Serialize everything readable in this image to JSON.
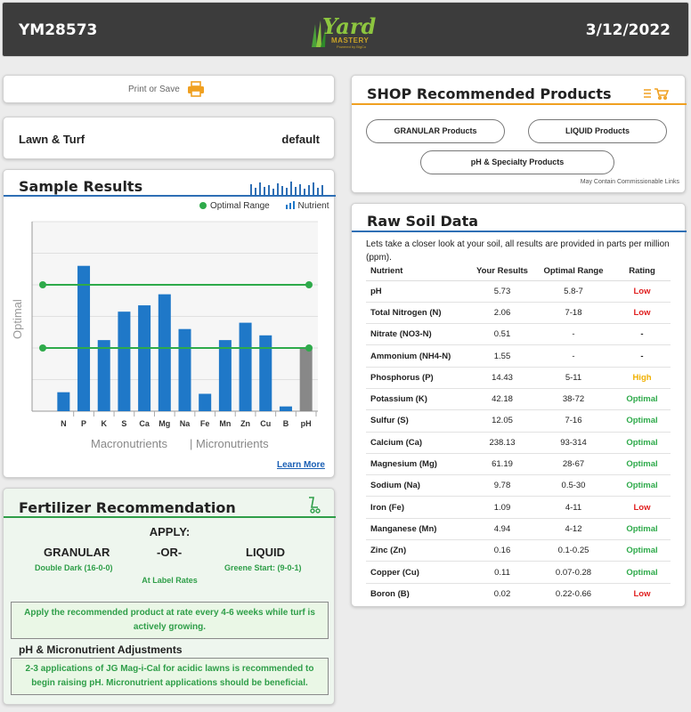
{
  "header": {
    "account_id": "YM28573",
    "date": "3/12/2022",
    "logo": {
      "word": "Yard",
      "sub": "MASTERY",
      "tag": "Powered by BigCo"
    }
  },
  "print": {
    "label": "Print or Save",
    "icon": "printer-icon",
    "icon_color": "#f0a020"
  },
  "lawn": {
    "type": "Lawn & Turf",
    "profile": "default"
  },
  "sample": {
    "title": "Sample Results",
    "legend_optimal": "Optimal Range",
    "legend_nutrient": "Nutrient",
    "y_label": "Optimal",
    "group_macro": "Macronutrients",
    "group_micro": "| Micronutrients",
    "learn_more": "Learn More"
  },
  "chart_data": {
    "type": "bar",
    "categories": [
      "N",
      "P",
      "K",
      "S",
      "Ca",
      "Mg",
      "Na",
      "Fe",
      "Mn",
      "Zn",
      "Cu",
      "B",
      "pH"
    ],
    "values": [
      0.6,
      4.6,
      2.25,
      3.15,
      3.35,
      3.7,
      2.6,
      0.55,
      2.25,
      2.8,
      2.4,
      0.15,
      2.0
    ],
    "optimal_band": [
      2.0,
      4.0
    ],
    "ylim": [
      0,
      6
    ],
    "bar_colors": {
      "nutrient": "#1f78c8",
      "ph": "#888888"
    },
    "optimal_line_color": "#2eaa4a",
    "grid": true
  },
  "fertilizer": {
    "title": "Fertilizer Recommendation",
    "apply": "APPLY:",
    "granular": "GRANULAR",
    "or": "-OR-",
    "liquid": "LIQUID",
    "granular_product": "Double Dark (16-0-0)",
    "liquid_product": "Greene Start: (9-0-1)",
    "rates": "At Label Rates",
    "notice": "Apply the recommended product at rate every 4-6 weeks while turf is actively growing.",
    "adj_title": "pH & Micronutrient Adjustments",
    "adj_notice": "2-3 applications of JG Mag-i-Cal for acidic lawns is recommended to begin raising pH. Micronutrient applications should be beneficial."
  },
  "shop": {
    "title": "SHOP Recommended Products",
    "buttons": {
      "granular": "GRANULAR Products",
      "liquid": "LIQUID Products",
      "specialty": "pH & Specialty Products"
    },
    "note": "May Contain Commissionable Links"
  },
  "soil": {
    "title": "Raw Soil Data",
    "intro": "Lets take a closer look at your soil, all results are provided in parts per million (ppm).",
    "headers": [
      "Nutrient",
      "Your Results",
      "Optimal Range",
      "Rating"
    ],
    "rows": [
      {
        "nutrient": "pH",
        "result": "5.73",
        "range": "5.8-7",
        "rating": "Low",
        "color": "#e02020"
      },
      {
        "nutrient": "Total Nitrogen (N)",
        "result": "2.06",
        "range": "7-18",
        "rating": "Low",
        "color": "#e02020"
      },
      {
        "nutrient": "Nitrate (NO3-N)",
        "result": "0.51",
        "range": "-",
        "rating": "-",
        "color": "#222222"
      },
      {
        "nutrient": "Ammonium (NH4-N)",
        "result": "1.55",
        "range": "-",
        "rating": "-",
        "color": "#222222"
      },
      {
        "nutrient": "Phosphorus (P)",
        "result": "14.43",
        "range": "5-11",
        "rating": "High",
        "color": "#f0b000"
      },
      {
        "nutrient": "Potassium (K)",
        "result": "42.18",
        "range": "38-72",
        "rating": "Optimal",
        "color": "#2eaa4a"
      },
      {
        "nutrient": "Sulfur (S)",
        "result": "12.05",
        "range": "7-16",
        "rating": "Optimal",
        "color": "#2eaa4a"
      },
      {
        "nutrient": "Calcium (Ca)",
        "result": "238.13",
        "range": "93-314",
        "rating": "Optimal",
        "color": "#2eaa4a"
      },
      {
        "nutrient": "Magnesium (Mg)",
        "result": "61.19",
        "range": "28-67",
        "rating": "Optimal",
        "color": "#2eaa4a"
      },
      {
        "nutrient": "Sodium (Na)",
        "result": "9.78",
        "range": "0.5-30",
        "rating": "Optimal",
        "color": "#2eaa4a"
      },
      {
        "nutrient": "Iron (Fe)",
        "result": "1.09",
        "range": "4-11",
        "rating": "Low",
        "color": "#e02020"
      },
      {
        "nutrient": "Manganese (Mn)",
        "result": "4.94",
        "range": "4-12",
        "rating": "Optimal",
        "color": "#2eaa4a"
      },
      {
        "nutrient": "Zinc (Zn)",
        "result": "0.16",
        "range": "0.1-0.25",
        "rating": "Optimal",
        "color": "#2eaa4a"
      },
      {
        "nutrient": "Copper (Cu)",
        "result": "0.11",
        "range": "0.07-0.28",
        "rating": "Optimal",
        "color": "#2eaa4a"
      },
      {
        "nutrient": "Boron (B)",
        "result": "0.02",
        "range": "0.22-0.66",
        "rating": "Low",
        "color": "#e02020"
      }
    ]
  }
}
